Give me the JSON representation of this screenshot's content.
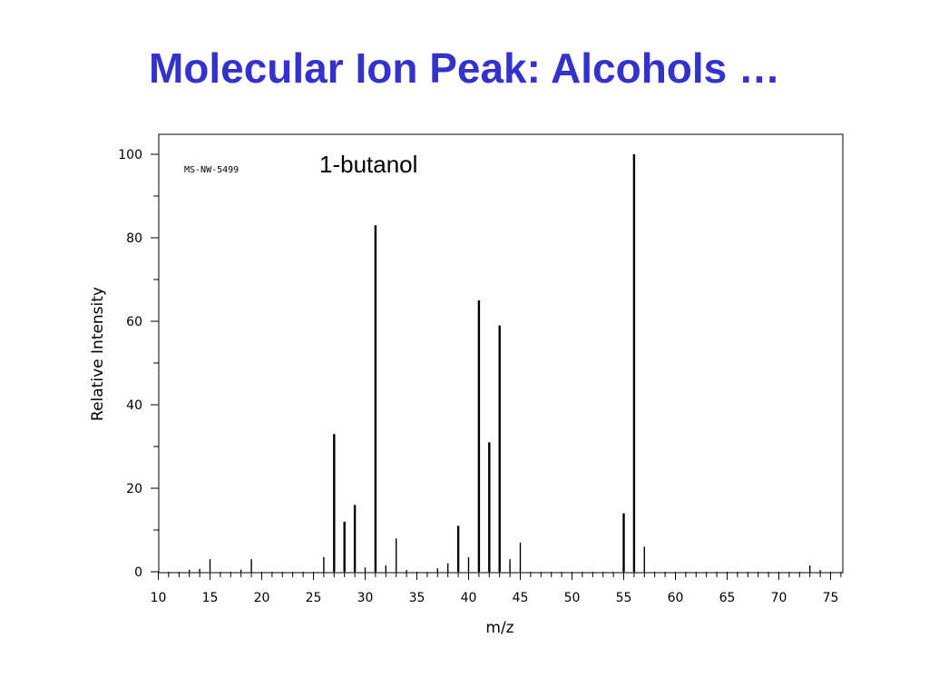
{
  "slide": {
    "title": "Molecular Ion Peak: Alcohols …"
  },
  "chart_data": {
    "type": "bar",
    "compound_label": "1-butanol",
    "spectrum_id": "MS-NW-5499",
    "xlabel": "m/z",
    "ylabel": "Relative Intensity",
    "xlim": [
      10,
      76
    ],
    "ylim": [
      0,
      100
    ],
    "xticks": [
      10,
      15,
      20,
      25,
      30,
      35,
      40,
      45,
      50,
      55,
      60,
      65,
      70,
      75
    ],
    "yticks": [
      0,
      20,
      40,
      60,
      80,
      100
    ],
    "grid": false,
    "peaks": [
      {
        "mz": 13,
        "intensity": 0.5
      },
      {
        "mz": 14,
        "intensity": 0.7
      },
      {
        "mz": 15,
        "intensity": 3
      },
      {
        "mz": 18,
        "intensity": 0.5
      },
      {
        "mz": 19,
        "intensity": 3
      },
      {
        "mz": 26,
        "intensity": 3.5
      },
      {
        "mz": 27,
        "intensity": 33
      },
      {
        "mz": 28,
        "intensity": 12
      },
      {
        "mz": 29,
        "intensity": 16
      },
      {
        "mz": 30,
        "intensity": 1
      },
      {
        "mz": 31,
        "intensity": 83
      },
      {
        "mz": 32,
        "intensity": 1.5
      },
      {
        "mz": 33,
        "intensity": 8
      },
      {
        "mz": 34,
        "intensity": 0.4
      },
      {
        "mz": 37,
        "intensity": 0.8
      },
      {
        "mz": 38,
        "intensity": 2
      },
      {
        "mz": 39,
        "intensity": 11
      },
      {
        "mz": 40,
        "intensity": 3.5
      },
      {
        "mz": 41,
        "intensity": 65
      },
      {
        "mz": 42,
        "intensity": 31
      },
      {
        "mz": 43,
        "intensity": 59
      },
      {
        "mz": 44,
        "intensity": 3
      },
      {
        "mz": 45,
        "intensity": 7
      },
      {
        "mz": 55,
        "intensity": 14
      },
      {
        "mz": 56,
        "intensity": 100
      },
      {
        "mz": 57,
        "intensity": 6
      },
      {
        "mz": 73,
        "intensity": 1.5
      },
      {
        "mz": 74,
        "intensity": 0.4
      }
    ]
  },
  "colors": {
    "title": "#3333cc",
    "axis": "#000000",
    "peaks": "#000000"
  }
}
